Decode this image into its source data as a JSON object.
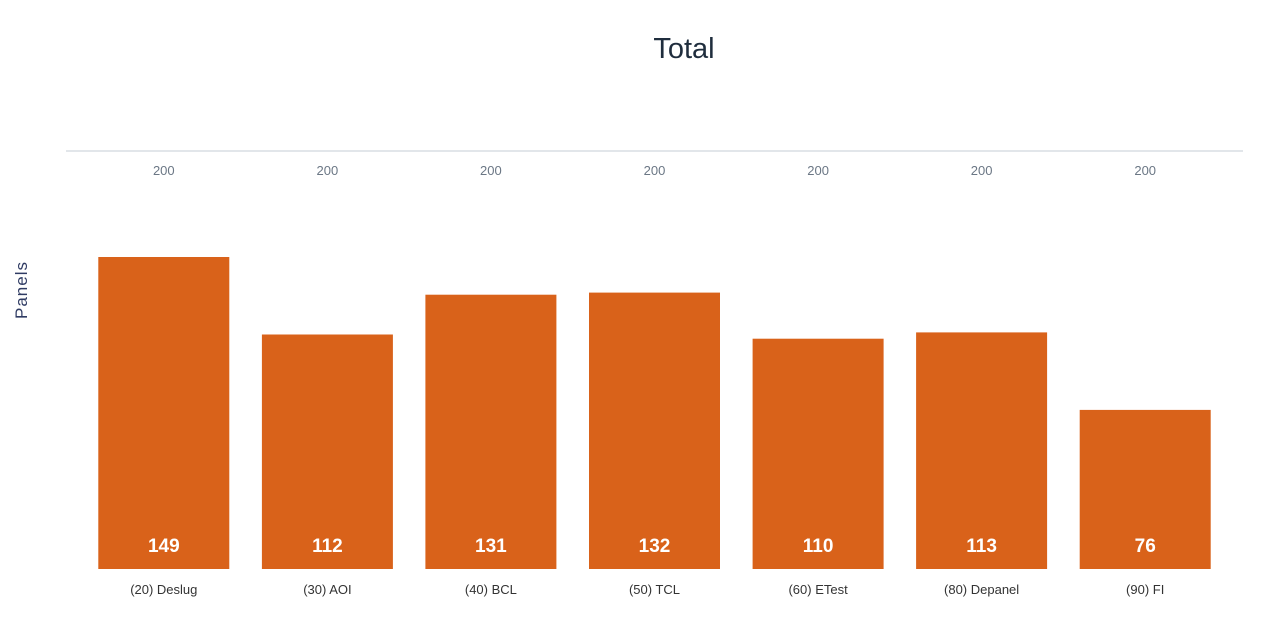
{
  "chart_data": {
    "type": "bar",
    "title": "Total",
    "ylabel": "Panels",
    "xlabel": "",
    "categories": [
      "(20) Deslug",
      "(30) AOI",
      "(40) BCL",
      "(50) TCL",
      "(60) ETest",
      "(80) Depanel",
      "(90) FI"
    ],
    "values": [
      149,
      112,
      131,
      132,
      110,
      113,
      76
    ],
    "top_axis_labels": [
      "200",
      "200",
      "200",
      "200",
      "200",
      "200",
      "200"
    ],
    "ylim": [
      0,
      150
    ],
    "bar_color": "#d9621a",
    "grid": false
  }
}
